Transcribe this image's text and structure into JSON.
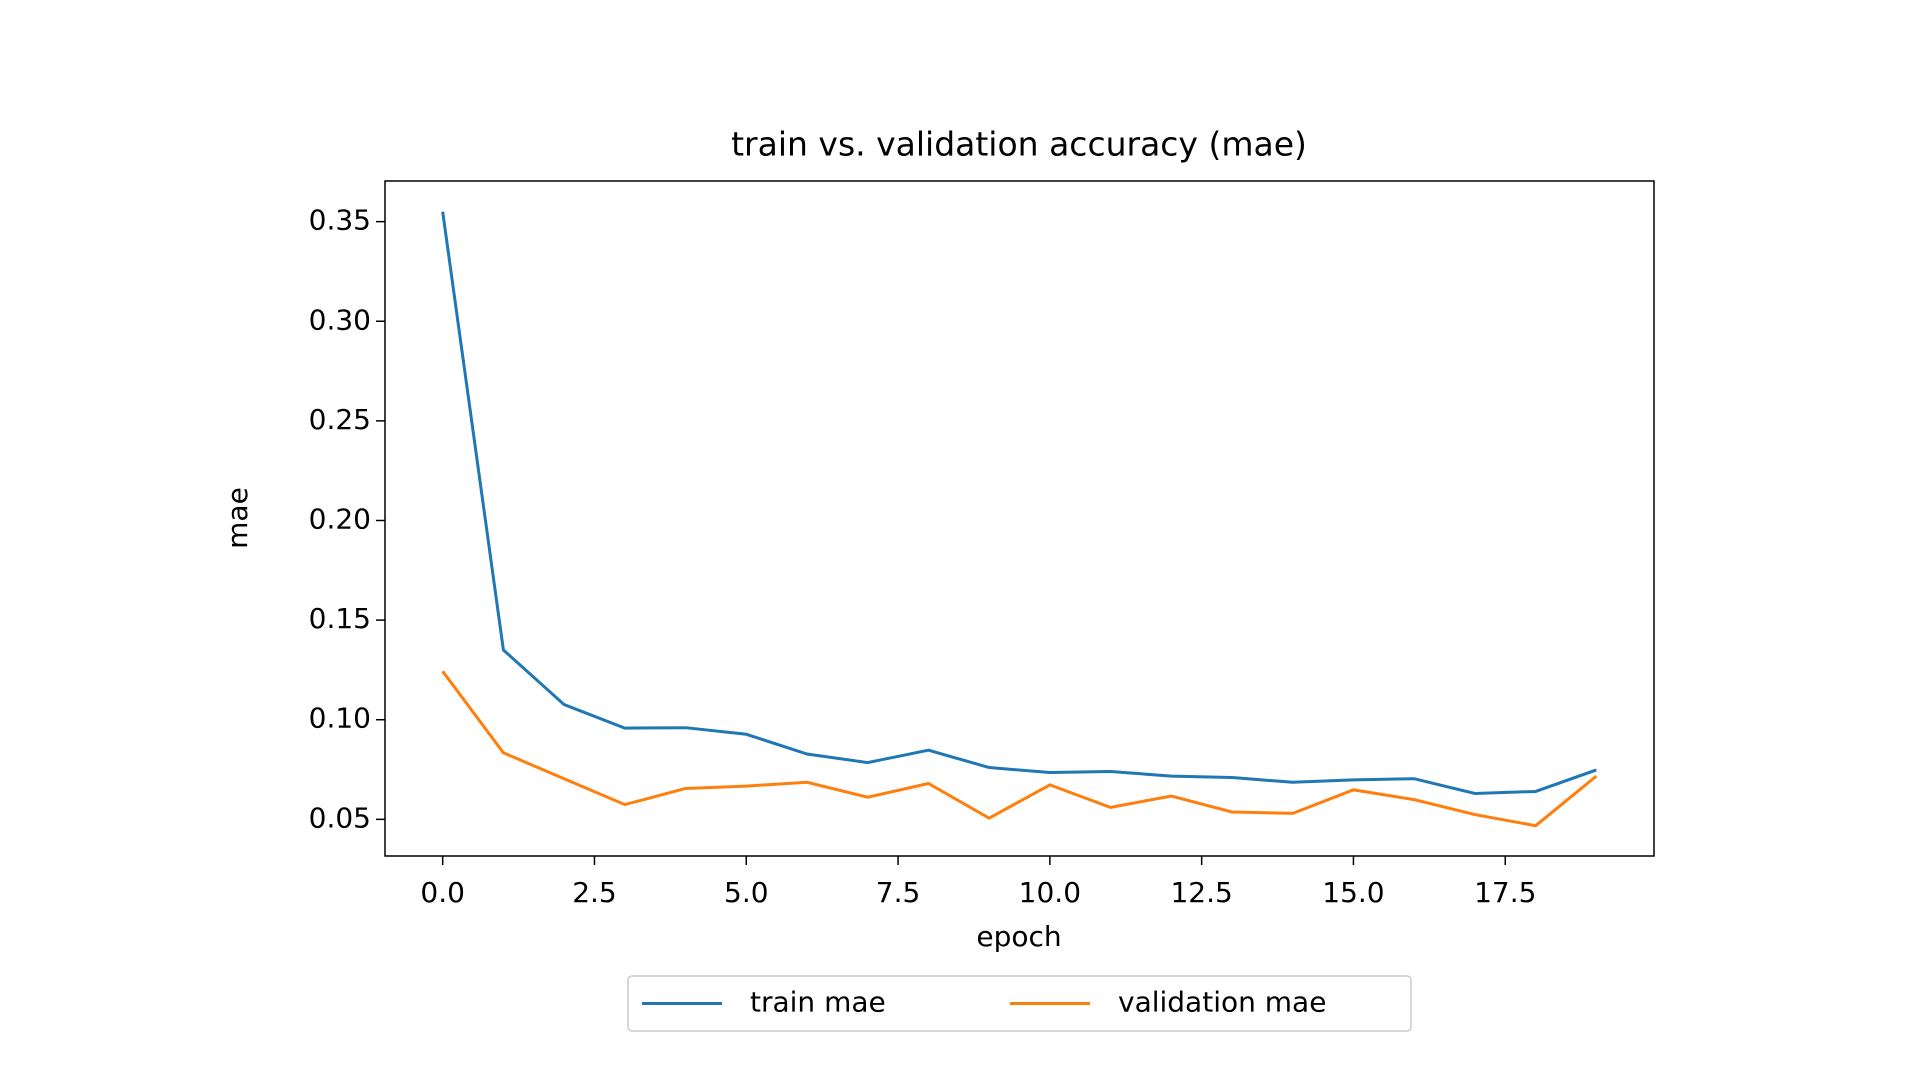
{
  "chart_data": {
    "type": "line",
    "title": "train vs. validation accuracy (mae)",
    "xlabel": "epoch",
    "ylabel": "mae",
    "x": [
      0,
      1,
      2,
      3,
      4,
      5,
      6,
      7,
      8,
      9,
      10,
      11,
      12,
      13,
      14,
      15,
      16,
      17,
      18,
      19
    ],
    "series": [
      {
        "name": "train mae",
        "color": "#1f77b4",
        "values": [
          0.355,
          0.135,
          0.1076,
          0.0958,
          0.096,
          0.0927,
          0.0828,
          0.0785,
          0.0847,
          0.076,
          0.0735,
          0.074,
          0.0717,
          0.071,
          0.0686,
          0.0698,
          0.0704,
          0.063,
          0.064,
          0.0748
        ]
      },
      {
        "name": "validation mae",
        "color": "#ff7f0e",
        "values": [
          0.1243,
          0.0834,
          0.0704,
          0.0574,
          0.0655,
          0.0667,
          0.0686,
          0.0611,
          0.068,
          0.0506,
          0.0673,
          0.056,
          0.0617,
          0.0537,
          0.053,
          0.0648,
          0.0599,
          0.0524,
          0.0468,
          0.0717
        ]
      }
    ],
    "xlim": [
      -0.95,
      19.95
    ],
    "xticks": [
      {
        "value": 0,
        "label": "0.0"
      },
      2.5,
      {
        "value": 5,
        "label": "5.0"
      },
      7.5,
      {
        "value": 10,
        "label": "10.0"
      },
      12.5,
      {
        "value": 15,
        "label": "15.0"
      },
      17.5
    ],
    "ylim": [
      0.0316,
      0.3704
    ],
    "yticks": [
      0.05,
      {
        "value": 0.1,
        "label": "0.10"
      },
      0.15,
      {
        "value": 0.2,
        "label": "0.20"
      },
      0.25,
      {
        "value": 0.3,
        "label": "0.30"
      },
      0.35
    ],
    "grid": false,
    "legend": "bottom"
  }
}
